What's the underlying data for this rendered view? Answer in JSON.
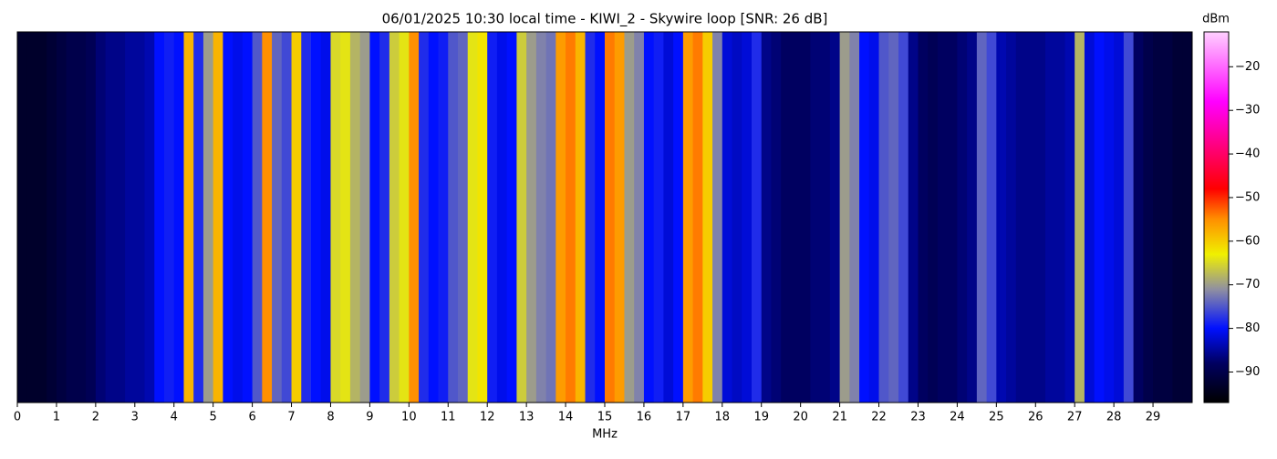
{
  "chart_data": {
    "type": "heatmap",
    "title": "06/01/2025 10:30 local time - KIWI_2 - Skywire loop [SNR: 26 dB]",
    "xlabel": "MHz",
    "colorbar_label": "dBm",
    "xlim": [
      0,
      30
    ],
    "xticks": [
      0,
      1,
      2,
      3,
      4,
      5,
      6,
      7,
      8,
      9,
      10,
      11,
      12,
      13,
      14,
      15,
      16,
      17,
      18,
      19,
      20,
      21,
      22,
      23,
      24,
      25,
      26,
      27,
      28,
      29
    ],
    "clim": [
      -97,
      -12
    ],
    "cticks": [
      {
        "value": -90,
        "label": "−90"
      },
      {
        "value": -80,
        "label": "−80"
      },
      {
        "value": -70,
        "label": "−70"
      },
      {
        "value": -60,
        "label": "−60"
      },
      {
        "value": -50,
        "label": "−50"
      },
      {
        "value": -40,
        "label": "−40"
      },
      {
        "value": -30,
        "label": "−30"
      },
      {
        "value": -20,
        "label": "−20"
      }
    ],
    "colormap": [
      {
        "value": -97,
        "color": "#000000"
      },
      {
        "value": -88,
        "color": "#000060"
      },
      {
        "value": -80,
        "color": "#0010ff"
      },
      {
        "value": -71,
        "color": "#9090a0"
      },
      {
        "value": -63,
        "color": "#f0f000"
      },
      {
        "value": -55,
        "color": "#ff9000"
      },
      {
        "value": -48,
        "color": "#ff0000"
      },
      {
        "value": -28,
        "color": "#ff00ff"
      },
      {
        "value": -12,
        "color": "#ffd0ff"
      }
    ],
    "x": [
      0,
      0.25,
      0.5,
      0.75,
      1,
      1.25,
      1.5,
      1.75,
      2,
      2.25,
      2.5,
      2.75,
      3,
      3.25,
      3.5,
      3.75,
      4,
      4.25,
      4.5,
      4.75,
      5,
      5.25,
      5.5,
      5.75,
      6,
      6.25,
      6.5,
      6.75,
      7,
      7.25,
      7.5,
      7.75,
      8,
      8.25,
      8.5,
      8.75,
      9,
      9.25,
      9.5,
      9.75,
      10,
      10.25,
      10.5,
      10.75,
      11,
      11.25,
      11.5,
      11.75,
      12,
      12.25,
      12.5,
      12.75,
      13,
      13.25,
      13.5,
      13.75,
      14,
      14.25,
      14.5,
      14.75,
      15,
      15.25,
      15.5,
      15.75,
      16,
      16.25,
      16.5,
      16.75,
      17,
      17.25,
      17.5,
      17.75,
      18,
      18.25,
      18.5,
      18.75,
      19,
      19.25,
      19.5,
      19.75,
      20,
      20.25,
      20.5,
      20.75,
      21,
      21.25,
      21.5,
      21.75,
      22,
      22.25,
      22.5,
      22.75,
      23,
      23.25,
      23.5,
      23.75,
      24,
      24.25,
      24.5,
      24.75,
      25,
      25.25,
      25.5,
      25.75,
      26,
      26.25,
      26.5,
      26.75,
      27,
      27.25,
      27.5,
      27.75,
      28,
      28.25,
      28.5,
      28.75,
      29,
      29.25,
      29.5,
      29.75
    ],
    "values": [
      -93,
      -93,
      -93,
      -92,
      -91,
      -90,
      -90,
      -89,
      -87,
      -86,
      -86,
      -85,
      -85,
      -84,
      -80,
      -79,
      -80,
      -58,
      -78,
      -70,
      -58,
      -80,
      -81,
      -80,
      -75,
      -55,
      -74,
      -76,
      -60,
      -78,
      -80,
      -81,
      -65,
      -64,
      -68,
      -70,
      -80,
      -78,
      -66,
      -64,
      -55,
      -78,
      -80,
      -79,
      -75,
      -74,
      -64,
      -62,
      -79,
      -81,
      -80,
      -66,
      -70,
      -72,
      -73,
      -56,
      -54,
      -58,
      -78,
      -80,
      -54,
      -56,
      -70,
      -72,
      -80,
      -79,
      -82,
      -80,
      -56,
      -54,
      -60,
      -72,
      -82,
      -83,
      -82,
      -78,
      -86,
      -87,
      -88,
      -88,
      -88,
      -87,
      -87,
      -86,
      -70,
      -72,
      -80,
      -81,
      -75,
      -74,
      -76,
      -86,
      -88,
      -89,
      -88,
      -88,
      -87,
      -86,
      -74,
      -76,
      -84,
      -85,
      -86,
      -86,
      -86,
      -85,
      -85,
      -84,
      -68,
      -82,
      -80,
      -81,
      -82,
      -76,
      -88,
      -90,
      -91,
      -91,
      -92,
      -92
    ]
  }
}
